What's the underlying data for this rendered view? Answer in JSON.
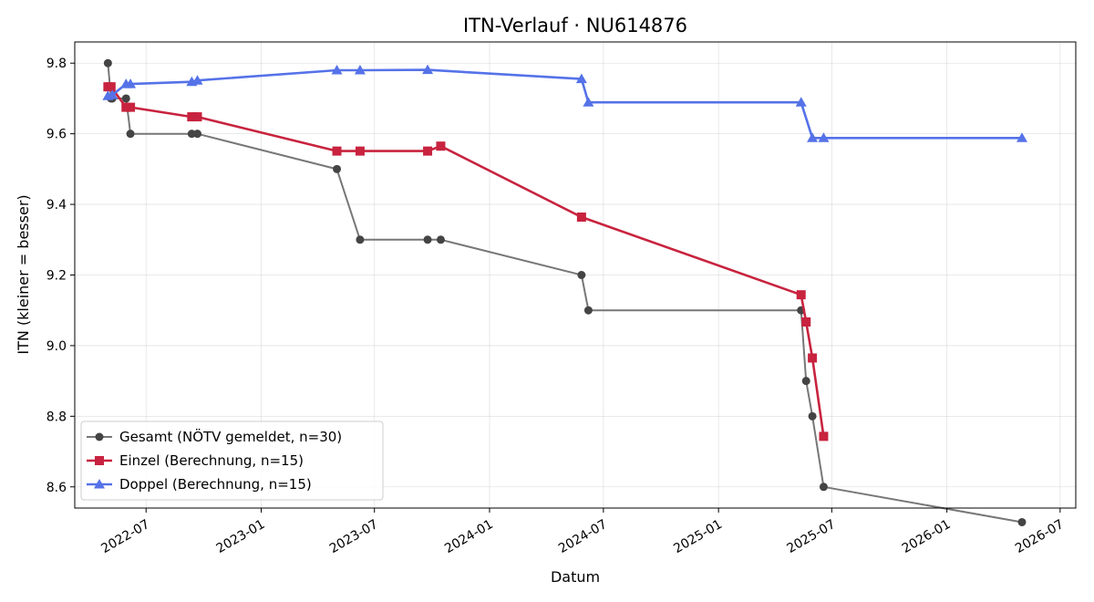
{
  "chart_data": {
    "type": "line",
    "title": "ITN-Verlauf · NU614876",
    "xlabel": "Datum",
    "ylabel": "ITN  (kleiner = besser)",
    "x_axis": "date",
    "xlim": [
      "2022-03-09",
      "2026-07-26"
    ],
    "ylim": [
      8.54,
      9.86
    ],
    "x_ticks": [
      "2022-07-01",
      "2023-01-01",
      "2023-07-01",
      "2024-01-01",
      "2024-07-01",
      "2025-01-01",
      "2025-07-01",
      "2026-01-01",
      "2026-07-01"
    ],
    "x_tick_labels": [
      "2022-07",
      "2023-01",
      "2023-07",
      "2024-01",
      "2024-07",
      "2025-01",
      "2025-07",
      "2026-01",
      "2026-07"
    ],
    "y_ticks": [
      8.6,
      8.8,
      9.0,
      9.2,
      9.4,
      9.6,
      9.8
    ],
    "y_tick_labels": [
      "8.6",
      "8.8",
      "9.0",
      "9.2",
      "9.4",
      "9.6",
      "9.8"
    ],
    "grid": true,
    "legend_position": "lower-left",
    "series": [
      {
        "name": "Gesamt (NÖTV gemeldet, n=30)",
        "color": "#777777",
        "marker_color": "#444444",
        "marker": "circle",
        "points": [
          {
            "x": "2022-05-01",
            "y": 9.8
          },
          {
            "x": "2022-05-06",
            "y": 9.7
          },
          {
            "x": "2022-05-08",
            "y": 9.7
          },
          {
            "x": "2022-05-30",
            "y": 9.7
          },
          {
            "x": "2022-06-06",
            "y": 9.6
          },
          {
            "x": "2022-09-12",
            "y": 9.6
          },
          {
            "x": "2022-09-21",
            "y": 9.6
          },
          {
            "x": "2023-05-02",
            "y": 9.5
          },
          {
            "x": "2023-06-08",
            "y": 9.3
          },
          {
            "x": "2023-09-24",
            "y": 9.3
          },
          {
            "x": "2023-10-15",
            "y": 9.3
          },
          {
            "x": "2024-05-27",
            "y": 9.2
          },
          {
            "x": "2024-06-07",
            "y": 9.1
          },
          {
            "x": "2025-05-13",
            "y": 9.1
          },
          {
            "x": "2025-05-21",
            "y": 8.9
          },
          {
            "x": "2025-05-31",
            "y": 8.8
          },
          {
            "x": "2025-06-18",
            "y": 8.6
          },
          {
            "x": "2026-05-01",
            "y": 8.5
          }
        ]
      },
      {
        "name": "Einzel (Berechnung, n=15)",
        "color": "#C8233F",
        "marker_color": "#C8233F",
        "marker": "square",
        "points": [
          {
            "x": "2022-05-01",
            "y": 9.733
          },
          {
            "x": "2022-05-06",
            "y": 9.733
          },
          {
            "x": "2022-05-30",
            "y": 9.675
          },
          {
            "x": "2022-06-06",
            "y": 9.675
          },
          {
            "x": "2022-09-12",
            "y": 9.648
          },
          {
            "x": "2022-09-21",
            "y": 9.648
          },
          {
            "x": "2023-05-02",
            "y": 9.551
          },
          {
            "x": "2023-06-08",
            "y": 9.551
          },
          {
            "x": "2023-09-24",
            "y": 9.551
          },
          {
            "x": "2023-10-15",
            "y": 9.565
          },
          {
            "x": "2024-05-27",
            "y": 9.364
          },
          {
            "x": "2025-05-13",
            "y": 9.144
          },
          {
            "x": "2025-05-21",
            "y": 9.067
          },
          {
            "x": "2025-05-31",
            "y": 8.965
          },
          {
            "x": "2025-06-18",
            "y": 8.743
          }
        ]
      },
      {
        "name": "Doppel (Berechnung, n=15)",
        "color": "#5572E8",
        "marker_color": "#5572E8",
        "marker": "triangle",
        "points": [
          {
            "x": "2022-05-01",
            "y": 9.707
          },
          {
            "x": "2022-05-08",
            "y": 9.71
          },
          {
            "x": "2022-05-30",
            "y": 9.741
          },
          {
            "x": "2022-06-06",
            "y": 9.741
          },
          {
            "x": "2022-09-12",
            "y": 9.747
          },
          {
            "x": "2022-09-21",
            "y": 9.751
          },
          {
            "x": "2023-05-02",
            "y": 9.78
          },
          {
            "x": "2023-06-08",
            "y": 9.78
          },
          {
            "x": "2023-09-24",
            "y": 9.781
          },
          {
            "x": "2024-05-27",
            "y": 9.755
          },
          {
            "x": "2024-06-07",
            "y": 9.689
          },
          {
            "x": "2025-05-13",
            "y": 9.689
          },
          {
            "x": "2025-05-31",
            "y": 9.588
          },
          {
            "x": "2025-06-18",
            "y": 9.588
          },
          {
            "x": "2026-05-01",
            "y": 9.588
          }
        ]
      }
    ]
  }
}
